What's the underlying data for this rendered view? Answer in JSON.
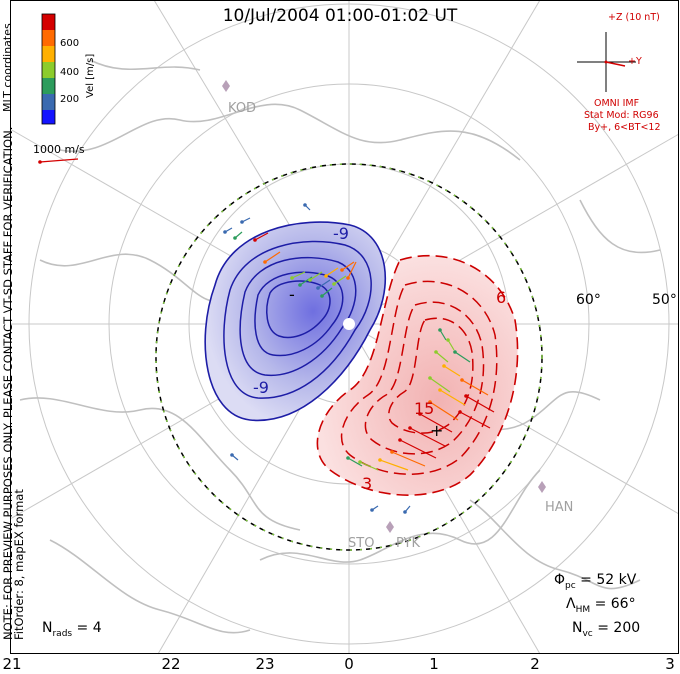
{
  "title": "10/Jul/2004 01:00-01:02 UT",
  "colorbar": {
    "units": "Vel [m/s]",
    "ticks": [
      "600",
      "400",
      "200"
    ],
    "colors": [
      "#d40000",
      "#ff6a00",
      "#ffb000",
      "#8ccc2c",
      "#2c9c5c",
      "#3a6ab0",
      "#1414ff"
    ]
  },
  "coord_label": "MLT coordinates",
  "scale_vector_label": "1000 m/s",
  "notes": [
    "NOTE: FOR PREVIEW PURPOSES ONLY. PLEASE CONTACT VT-SD STAFF FOR VERIFICATION.",
    "FitOrder: 8, mapEX format"
  ],
  "imf": {
    "z_label": "+Z (10 nT)",
    "y_label": "+Y",
    "source": "OMNI IMF",
    "stat_mod": "Stat Mod: RG96",
    "condition": "By+, 6<BT<12"
  },
  "stations": [
    "KOD",
    "HAN",
    "STO",
    "PYK"
  ],
  "latitude_labels": [
    "60°",
    "50°"
  ],
  "contour_labels": [
    "-9",
    "-9",
    "-",
    "6",
    "15",
    "3",
    "+"
  ],
  "stats": {
    "phi_pc": "52 kV",
    "lambda_hm": "66°",
    "n_vc": "200",
    "n_rads": "4"
  },
  "mlt_ticks": [
    "21",
    "22",
    "23",
    "0",
    "1",
    "2",
    "3"
  ]
}
